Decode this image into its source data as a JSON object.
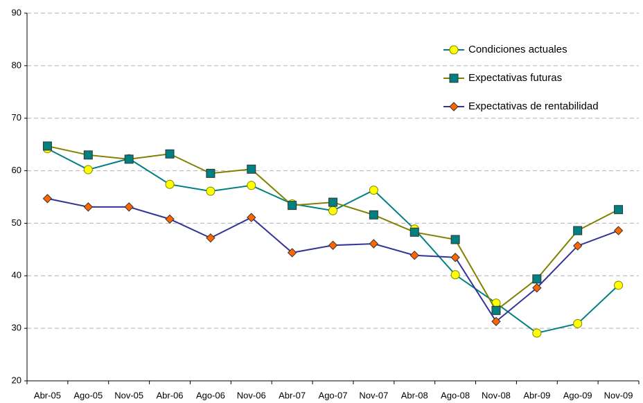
{
  "chart_data": {
    "type": "line",
    "categories": [
      "Abr-05",
      "Ago-05",
      "Nov-05",
      "Abr-06",
      "Ago-06",
      "Nov-06",
      "Abr-07",
      "Ago-07",
      "Nov-07",
      "Abr-08",
      "Ago-08",
      "Nov-08",
      "Abr-09",
      "Ago-09",
      "Nov-09"
    ],
    "series": [
      {
        "name": "Condiciones actuales",
        "color": "#008080",
        "marker": "circle",
        "marker_color": "#ffff00",
        "values": [
          64.2,
          60.2,
          62.3,
          57.4,
          56.1,
          57.2,
          53.7,
          52.4,
          56.3,
          48.9,
          40.2,
          34.8,
          29.1,
          30.9,
          38.2
        ]
      },
      {
        "name": "Expectativas futuras",
        "color": "#808000",
        "marker": "square",
        "marker_color": "#008080",
        "values": [
          64.7,
          63.0,
          62.2,
          63.2,
          59.5,
          60.3,
          53.4,
          54.0,
          51.6,
          48.3,
          46.9,
          33.4,
          39.4,
          48.6,
          52.6
        ]
      },
      {
        "name": "Expectativas de rentabilidad",
        "color": "#333399",
        "marker": "diamond",
        "marker_color": "#ff6600",
        "values": [
          54.7,
          53.1,
          53.1,
          50.8,
          47.2,
          51.1,
          44.4,
          45.8,
          46.1,
          43.9,
          43.5,
          31.3,
          37.7,
          45.7,
          48.6
        ]
      }
    ],
    "ylim": [
      20,
      90
    ],
    "yticks": [
      20,
      30,
      40,
      50,
      60,
      70,
      80,
      90
    ],
    "grid": true,
    "legend": "top-right"
  }
}
